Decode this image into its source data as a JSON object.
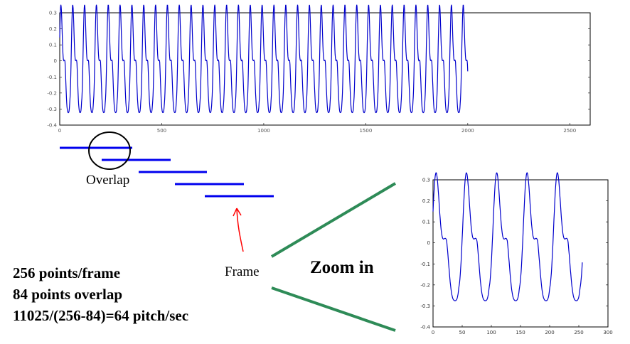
{
  "labels": {
    "overlap": "Overlap",
    "frame": "Frame",
    "zoom_in": "Zoom in",
    "points_per_frame": "256 points/frame",
    "points_overlap": "84 points overlap",
    "pitch_formula": "11025/(256-84)=64 pitch/sec"
  },
  "colors": {
    "waveform": "#0000cc",
    "frame_bar": "#0000ee",
    "arrow": "#ff0000",
    "zoom_lines": "#2e8b57",
    "circle": "#000000"
  },
  "chart_data": [
    {
      "type": "line",
      "title": "",
      "xlabel": "",
      "ylabel": "",
      "xlim": [
        0,
        2600
      ],
      "ylim": [
        -0.4,
        0.3
      ],
      "x_ticks": [
        "0",
        "500",
        "1000",
        "1500",
        "2000",
        "2500"
      ],
      "y_ticks": [
        "-0.4",
        "-0.3",
        "-0.2",
        "-0.1",
        "0",
        "0.1",
        "0.2",
        "0.3"
      ],
      "series": [
        {
          "x_start": 0,
          "x_end": 2000,
          "period": 58,
          "amplitude_min": -0.35,
          "amplitude_max": 0.28
        }
      ]
    },
    {
      "type": "line",
      "title": "",
      "xlabel": "",
      "ylabel": "",
      "xlim": [
        0,
        300
      ],
      "ylim": [
        -0.4,
        0.3
      ],
      "x_ticks": [
        "0",
        "50",
        "100",
        "150",
        "200",
        "250",
        "300"
      ],
      "y_ticks": [
        "-0.4",
        "-0.3",
        "-0.2",
        "-0.1",
        "0",
        "0.1",
        "0.2",
        "0.3"
      ],
      "series": [
        {
          "x_start": 0,
          "x_end": 256,
          "period": 52,
          "amplitude_min": -0.3,
          "amplitude_max": 0.27
        }
      ]
    }
  ]
}
